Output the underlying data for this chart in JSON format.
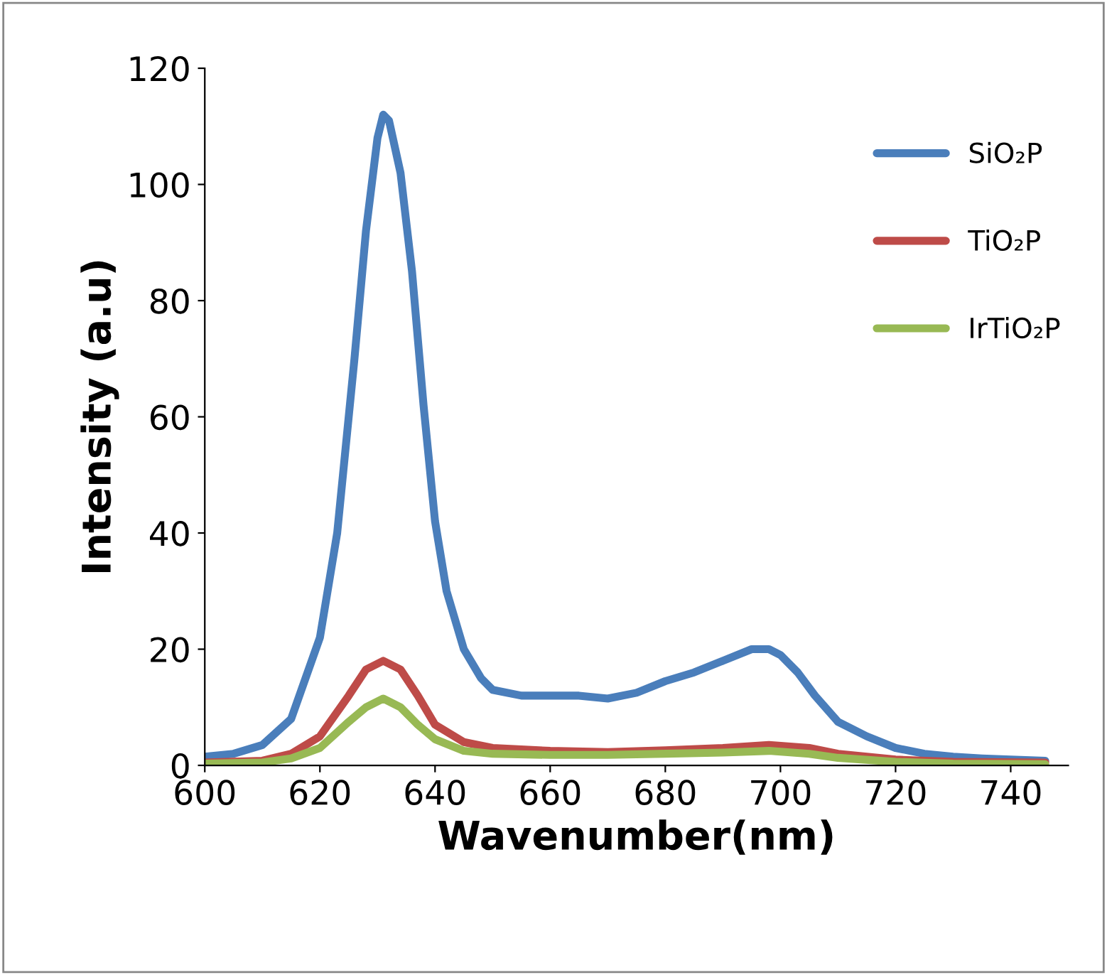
{
  "chart_data": {
    "type": "line",
    "xlabel": "Wavenumber(nm)",
    "ylabel": "Intensity (a.u)",
    "xlim": [
      600,
      750
    ],
    "xticks": [
      600,
      620,
      640,
      660,
      680,
      700,
      720,
      740
    ],
    "ylim": [
      0,
      120
    ],
    "yticks": [
      0,
      20,
      40,
      60,
      80,
      100,
      120
    ],
    "grid": false,
    "legend": "top right",
    "marker": "none",
    "line_style": "solid",
    "series": [
      {
        "name": "SiO₂P",
        "color": "#4a7ebb",
        "x": [
          600,
          605,
          610,
          615,
          620,
          623,
          626,
          628,
          630,
          631,
          632,
          634,
          636,
          638,
          640,
          642,
          645,
          648,
          650,
          655,
          660,
          665,
          670,
          675,
          680,
          685,
          690,
          695,
          698,
          700,
          703,
          706,
          710,
          715,
          720,
          725,
          730,
          735,
          740,
          746
        ],
        "values": [
          1.5,
          2,
          3.5,
          8,
          22,
          40,
          70,
          92,
          108,
          112,
          111,
          102,
          85,
          62,
          42,
          30,
          20,
          15,
          13,
          12,
          12,
          12,
          11.5,
          12.5,
          14.5,
          16,
          18,
          20,
          20,
          19,
          16,
          12,
          7.5,
          5,
          3,
          2,
          1.5,
          1.2,
          1,
          0.8
        ]
      },
      {
        "name": "TiO₂P",
        "color": "#be4b48",
        "x": [
          600,
          610,
          615,
          620,
          625,
          628,
          631,
          634,
          637,
          640,
          645,
          650,
          660,
          670,
          680,
          690,
          698,
          705,
          710,
          720,
          730,
          746
        ],
        "values": [
          0.5,
          0.8,
          2,
          5,
          12,
          16.5,
          18,
          16.5,
          12,
          7,
          4,
          3,
          2.5,
          2.3,
          2.6,
          3,
          3.5,
          3,
          2,
          1,
          0.6,
          0.5
        ]
      },
      {
        "name": "IrTiO₂P",
        "color": "#98b954",
        "x": [
          600,
          610,
          615,
          620,
          625,
          628,
          631,
          634,
          637,
          640,
          645,
          650,
          660,
          670,
          680,
          690,
          698,
          705,
          710,
          720,
          730,
          746
        ],
        "values": [
          0.3,
          0.5,
          1.2,
          3,
          7.5,
          10,
          11.5,
          10,
          7,
          4.5,
          2.5,
          2,
          1.8,
          1.8,
          2,
          2.2,
          2.5,
          2,
          1.3,
          0.6,
          0.3,
          0.2
        ]
      }
    ]
  }
}
